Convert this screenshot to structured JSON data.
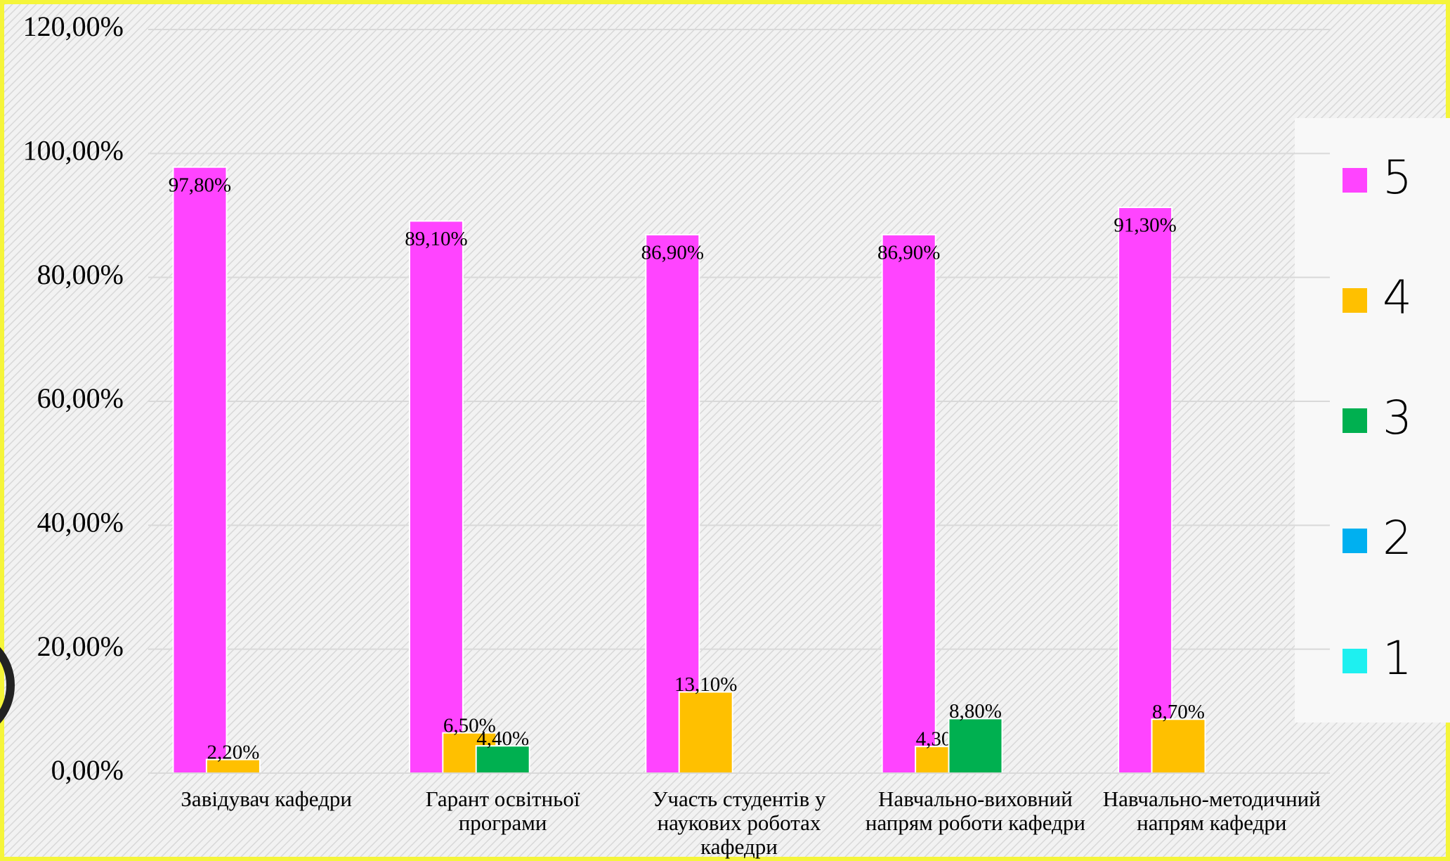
{
  "chart_data": {
    "type": "bar",
    "categories": [
      "Завідувач кафедри",
      "Гарант освітньої програми",
      "Участь студентів у наукових роботах кафедри",
      "Навчально-виховний напрям роботи кафедри",
      "Навчально-методичний напрям кафедри"
    ],
    "series": [
      {
        "name": "5",
        "color": "#ff44ff",
        "values": [
          97.8,
          89.1,
          86.9,
          86.9,
          91.3
        ],
        "value_labels": [
          "97,80%",
          "89,10%",
          "86,90%",
          "86,90%",
          "91,30%"
        ]
      },
      {
        "name": "4",
        "color": "#ffc000",
        "values": [
          2.2,
          6.5,
          13.1,
          4.3,
          8.7
        ],
        "value_labels": [
          "2,20%",
          "6,50%",
          "13,10%",
          "4,30%",
          "8,70%"
        ]
      },
      {
        "name": "3",
        "color": "#00b050",
        "values": [
          null,
          4.4,
          null,
          8.8,
          null
        ],
        "value_labels": [
          null,
          "4,40%",
          null,
          "8,80%",
          null
        ]
      },
      {
        "name": "2",
        "color": "#00b0f0",
        "values": [
          null,
          null,
          null,
          null,
          null
        ]
      },
      {
        "name": "1",
        "color": "#1ef0f0",
        "values": [
          null,
          null,
          null,
          null,
          null
        ]
      }
    ],
    "ylim": [
      0,
      120
    ],
    "yticks": [
      {
        "value": 0,
        "label": "0,00%"
      },
      {
        "value": 20,
        "label": "20,00%"
      },
      {
        "value": 40,
        "label": "40,00%"
      },
      {
        "value": 60,
        "label": "60,00%"
      },
      {
        "value": 80,
        "label": "80,00%"
      },
      {
        "value": 100,
        "label": "100,00%"
      },
      {
        "value": 120,
        "label": "120,00%"
      }
    ],
    "grid": true,
    "legend": "right"
  }
}
